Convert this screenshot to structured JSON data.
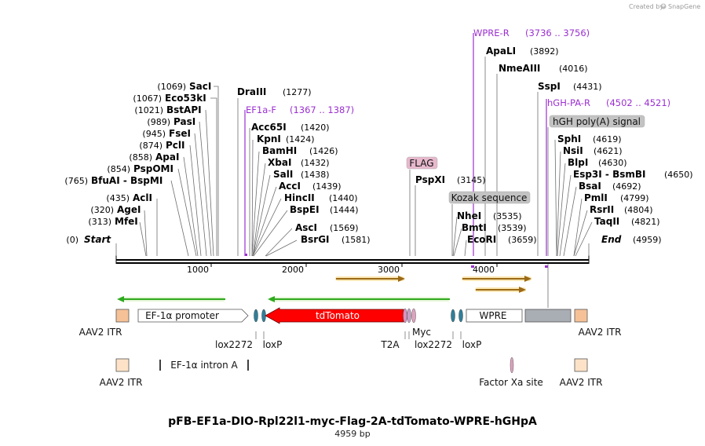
{
  "branding": {
    "created_by": "Created by",
    "product": "SnapGene"
  },
  "sequence_length_bp": 4959,
  "title": "pFB-EF1a-DIO-Rpl22l1-myc-Flag-2A-tdTomato-WPRE-hGHpA",
  "subtitle": "4959 bp",
  "axis": {
    "ticks": [
      {
        "value": 1000,
        "label": "1000"
      },
      {
        "value": 2000,
        "label": "2000"
      },
      {
        "value": 3000,
        "label": "3000"
      },
      {
        "value": 4000,
        "label": "4000"
      }
    ]
  },
  "left_sites": [
    {
      "name": "SacI",
      "pos": "(1069)",
      "site": 1069
    },
    {
      "name": "Eco53kI",
      "pos": "(1067)",
      "site": 1067
    },
    {
      "name": "BstAPI",
      "pos": "(1021)",
      "site": 1021
    },
    {
      "name": "PasI",
      "pos": "(989)",
      "site": 989
    },
    {
      "name": "FseI",
      "pos": "(945)",
      "site": 945
    },
    {
      "name": "PclI",
      "pos": "(874)",
      "site": 874
    },
    {
      "name": "ApaI",
      "pos": "(858)",
      "site": 858
    },
    {
      "name": "PspOMI",
      "pos": "(854)",
      "site": 854
    },
    {
      "name": "BfuAI  -  BspMI",
      "pos": "(765)",
      "site": 765
    },
    {
      "name": "AclI",
      "pos": "(435)",
      "site": 435
    },
    {
      "name": "AgeI",
      "pos": "(320)",
      "site": 320
    },
    {
      "name": "MfeI",
      "pos": "(313)",
      "site": 313
    },
    {
      "name": "Start",
      "pos": "(0)",
      "site": 0,
      "italic": true
    }
  ],
  "mid_sites": [
    {
      "name": "DraIII",
      "pos": "(1277)",
      "site": 1277
    },
    {
      "name": "Acc65I",
      "pos": "(1420)",
      "site": 1420
    },
    {
      "name": "KpnI",
      "pos": "(1424)",
      "site": 1424
    },
    {
      "name": "BamHI",
      "pos": "(1426)",
      "site": 1426
    },
    {
      "name": "XbaI",
      "pos": "(1432)",
      "site": 1432
    },
    {
      "name": "SalI",
      "pos": "(1438)",
      "site": 1438
    },
    {
      "name": "AccI",
      "pos": "(1439)",
      "site": 1439
    },
    {
      "name": "HincII",
      "pos": "(1440)",
      "site": 1440
    },
    {
      "name": "BspEI",
      "pos": "(1444)",
      "site": 1444
    },
    {
      "name": "AscI",
      "pos": "(1569)",
      "site": 1569
    },
    {
      "name": "BsrGI",
      "pos": "(1581)",
      "site": 1581
    },
    {
      "name": "PspXI",
      "pos": "(3145)",
      "site": 3145
    }
  ],
  "right_sites": [
    {
      "name": "ApaLI",
      "pos": "(3892)",
      "site": 3892
    },
    {
      "name": "NmeAIII",
      "pos": "(4016)",
      "site": 4016
    },
    {
      "name": "SspI",
      "pos": "(4431)",
      "site": 4431
    },
    {
      "name": "NheI",
      "pos": "(3535)",
      "site": 3535
    },
    {
      "name": "BmtI",
      "pos": "(3539)",
      "site": 3539
    },
    {
      "name": "EcoRI",
      "pos": "(3659)",
      "site": 3659
    },
    {
      "name": "SphI",
      "pos": "(4619)",
      "site": 4619
    },
    {
      "name": "NsiI",
      "pos": "(4621)",
      "site": 4621
    },
    {
      "name": "BlpI",
      "pos": "(4630)",
      "site": 4630
    },
    {
      "name": "Esp3I  -  BsmBI",
      "pos": "(4650)",
      "site": 4650
    },
    {
      "name": "BsaI",
      "pos": "(4692)",
      "site": 4692
    },
    {
      "name": "PmlI",
      "pos": "(4799)",
      "site": 4799
    },
    {
      "name": "RsrII",
      "pos": "(4804)",
      "site": 4804
    },
    {
      "name": "TaqII",
      "pos": "(4821)",
      "site": 4821
    },
    {
      "name": "End",
      "pos": "(4959)",
      "site": 4959,
      "italic": true
    }
  ],
  "primers": [
    {
      "name": "EF1a-F",
      "range": "(1367 .. 1387)",
      "start": 1367,
      "end": 1387
    },
    {
      "name": "WPRE-R",
      "range": "(3736 .. 3756)",
      "start": 3736,
      "end": 3756
    },
    {
      "name": "hGH-PA-R",
      "range": "(4502 .. 4521)",
      "start": 4502,
      "end": 4521
    }
  ],
  "boxed_features": [
    {
      "name": "FLAG"
    },
    {
      "name": "Kozak sequence"
    },
    {
      "name": "hGH poly(A) signal"
    }
  ],
  "features": {
    "aav2_itr": "AAV2 ITR",
    "ef1a_promoter": "EF-1α promoter",
    "tdtomato": "tdTomato",
    "wpre": "WPRE",
    "lox2272": "lox2272",
    "loxp": "loxP",
    "t2a": "T2A",
    "myc": "Myc",
    "ef1a_intron": "EF-1α intron A",
    "factor_xa": "Factor Xa site"
  },
  "colors": {
    "primer": "#9b30d0",
    "tdtomato": "#ff0000",
    "itr": "#f6c197",
    "ori": "#a9aeb4",
    "lox": "#2e7f9a",
    "orf_green": "#2eaa1e",
    "orf_orange": "#e79b26"
  }
}
